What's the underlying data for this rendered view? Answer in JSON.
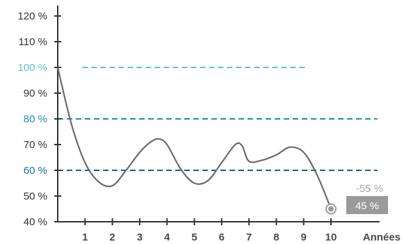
{
  "chart_data": {
    "type": "line",
    "xlabel": "Années",
    "ylabel": "",
    "ylim": [
      40,
      120
    ],
    "xlim": [
      0,
      10
    ],
    "x_ticks": [
      1,
      2,
      3,
      4,
      5,
      6,
      7,
      8,
      9,
      10
    ],
    "y_ticks": [
      {
        "value": 40,
        "label": "40 %",
        "color": "#333333"
      },
      {
        "value": 50,
        "label": "50 %",
        "color": "#333333"
      },
      {
        "value": 60,
        "label": "60 %",
        "color": "#1a6fa3"
      },
      {
        "value": 70,
        "label": "70 %",
        "color": "#333333"
      },
      {
        "value": 80,
        "label": "80 %",
        "color": "#1a8fb0"
      },
      {
        "value": 90,
        "label": "90 %",
        "color": "#333333"
      },
      {
        "value": 100,
        "label": "100 %",
        "color": "#5bc3cc"
      },
      {
        "value": 110,
        "label": "110 %",
        "color": "#333333"
      },
      {
        "value": 120,
        "label": "120 %",
        "color": "#333333"
      }
    ],
    "reference_lines": [
      {
        "value": 100,
        "from": 0.9,
        "to": 9.1,
        "color": "#5bc3cc"
      },
      {
        "value": 80,
        "from": 0,
        "to": 11.7,
        "color": "#1a8fb0"
      },
      {
        "value": 60,
        "from": 0,
        "to": 11.7,
        "color": "#1a5f8f"
      }
    ],
    "series": [
      {
        "color": "#6b6b6b",
        "points": [
          [
            0,
            100
          ],
          [
            0.5,
            78
          ],
          [
            1,
            63
          ],
          [
            1.5,
            55.5
          ],
          [
            2,
            54
          ],
          [
            2.5,
            60
          ],
          [
            3,
            67
          ],
          [
            3.4,
            71
          ],
          [
            3.7,
            72.2
          ],
          [
            4,
            70
          ],
          [
            4.5,
            60.5
          ],
          [
            5,
            55
          ],
          [
            5.5,
            56
          ],
          [
            6,
            63
          ],
          [
            6.5,
            70
          ],
          [
            6.75,
            69.5
          ],
          [
            7,
            63.5
          ],
          [
            7.5,
            64
          ],
          [
            8,
            66
          ],
          [
            8.5,
            69
          ],
          [
            9,
            67
          ],
          [
            9.5,
            58
          ],
          [
            10,
            45
          ]
        ]
      }
    ],
    "end_marker": {
      "x": 10,
      "y": 45
    },
    "annotations": {
      "change": "-55 %",
      "final": "45 %"
    }
  },
  "colors": {
    "axis": "#333333",
    "badge_bg": "#9a9a9a",
    "badge_text": "#ffffff",
    "change_text": "#a8a8a8"
  }
}
